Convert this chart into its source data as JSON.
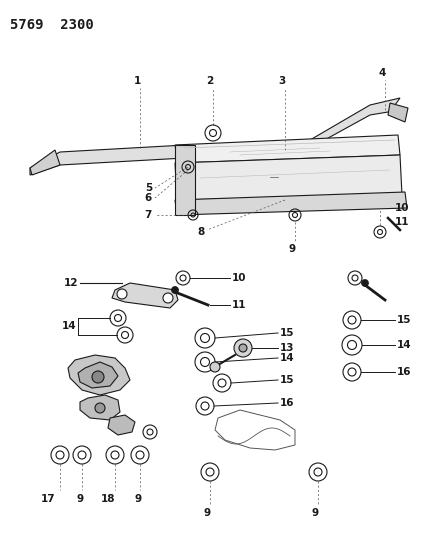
{
  "title": "5769  2300",
  "bg_color": "#ffffff",
  "fig_width": 4.28,
  "fig_height": 5.33,
  "dpi": 100
}
